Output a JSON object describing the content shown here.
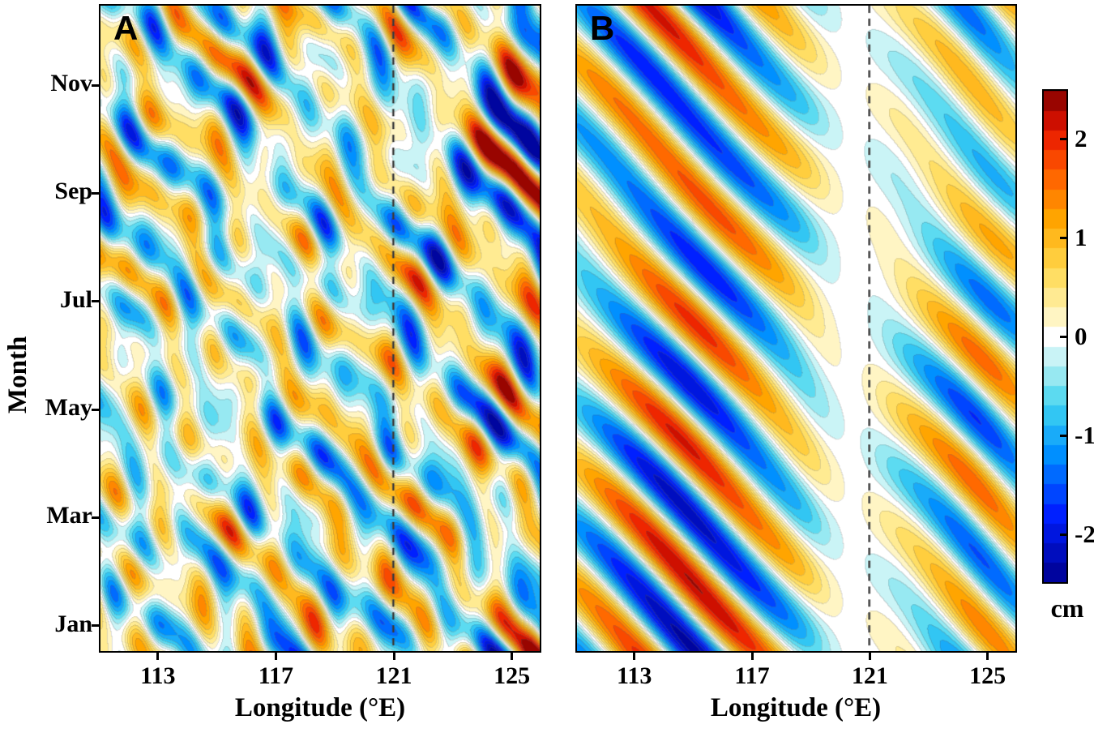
{
  "figure": {
    "background": "#ffffff",
    "ylabel": "Month",
    "xlabel": "Longitude (°E)",
    "frame_color": "#000000",
    "dashed_line_color": "#3c3c3c"
  },
  "axes": {
    "lon_min": 111,
    "lon_max": 126,
    "month_min": 0,
    "month_max": 12,
    "xticks": [
      113,
      117,
      121,
      125
    ],
    "yticks": [
      {
        "label": "Jan",
        "month": 0.5
      },
      {
        "label": "Mar",
        "month": 2.5
      },
      {
        "label": "May",
        "month": 4.5
      },
      {
        "label": "Jul",
        "month": 6.5
      },
      {
        "label": "Sep",
        "month": 8.5
      },
      {
        "label": "Nov",
        "month": 10.5
      }
    ],
    "dashed_line_lon": 121
  },
  "colorbar": {
    "min": -2.5,
    "max": 2.5,
    "ticks": [
      2,
      1,
      0,
      -1,
      -2
    ],
    "label": "cm",
    "contour_step": 0.2,
    "stops": [
      [
        -2.5,
        "#00008f"
      ],
      [
        -1.8,
        "#0020ff"
      ],
      [
        -1.2,
        "#0090ff"
      ],
      [
        -0.7,
        "#3fd4f0"
      ],
      [
        -0.35,
        "#a6ecf2"
      ],
      [
        -0.08,
        "#e6fafa"
      ],
      [
        0.0,
        "#ffffff"
      ],
      [
        0.08,
        "#fffbe2"
      ],
      [
        0.35,
        "#ffee9e"
      ],
      [
        0.7,
        "#ffd84d"
      ],
      [
        1.2,
        "#ffa500"
      ],
      [
        1.7,
        "#ff5a00"
      ],
      [
        2.1,
        "#e81500"
      ],
      [
        2.5,
        "#7f0000"
      ]
    ]
  },
  "chart_data": {
    "type": "heatmap",
    "title": "",
    "description": "Two Hovmöller (longitude vs. month) filled-contour panels of anomalies in cm. Diagonal bands tilt down toward the east, indicating signals that propagate westward as time advances. A dashed reference line marks 121°E in both panels.",
    "x": {
      "label": "Longitude (°E)",
      "range": [
        111,
        126
      ],
      "ticks": [
        113,
        117,
        121,
        125
      ]
    },
    "y": {
      "label": "Month",
      "range_months": [
        0,
        12
      ],
      "ticks": [
        "Jan",
        "Mar",
        "May",
        "Jul",
        "Sep",
        "Nov"
      ]
    },
    "value_units": "cm",
    "value_range": [
      -2.5,
      2.5
    ],
    "panels": [
      {
        "label": "A",
        "character": "Fine-scale noisy tilted bands; weak (about ±1 cm) west of 119°E, stronger features 120–123°E, strongest (up to ±2.5 cm) near the eastern edge 124–126°E.",
        "model": {
          "env_const": 0.55,
          "envelopes": [
            {
              "center": 125.9,
              "width": 2.0,
              "amp": 1.25
            },
            {
              "center": 120.8,
              "width": 2.6,
              "amp": 0.35
            },
            {
              "center": 117.4,
              "width": 3.0,
              "amp": 0.2
            }
          ],
          "gaps": [
            {
              "center": 119.8,
              "width": 0.7,
              "depth": 0.25
            }
          ],
          "time_mod": {
            "mean": 0.9,
            "amp": 0.18,
            "period": 12,
            "phase": 2.2
          },
          "waves": [
            {
              "amp": 1.0,
              "period": 2.1,
              "wavelength": 3.3,
              "phase": 0.6
            },
            {
              "amp": 0.45,
              "period": 1.45,
              "wavelength": 2.25,
              "phase": 2.9
            }
          ],
          "noise": [
            {
              "amp": 0.4,
              "kx": 0.55,
              "kt": 0.3,
              "phase": 1.1
            },
            {
              "amp": 0.36,
              "kx": 0.23,
              "kt": 0.55,
              "phase": 4.0
            },
            {
              "amp": 0.3,
              "kx": 0.8,
              "kt": 0.18,
              "phase": 2.6
            },
            {
              "amp": 0.27,
              "kx": 0.12,
              "kt": 0.7,
              "phase": 5.1
            },
            {
              "amp": 0.24,
              "kx": 0.4,
              "kt": 0.92,
              "phase": 0.3
            },
            {
              "amp": 0.2,
              "kx": 0.5,
              "kt": -0.25,
              "phase": 1.9
            }
          ],
          "noise_scale": 1.1,
          "clip": 2.45
        }
      },
      {
        "label": "B",
        "character": "Smooth broad diagonal bands reaching ±2.5 cm west of about 119°E, a quiet near-zero strip around 120–121°E, and moderate (about ±1.5 cm) bands east of 121°E.",
        "model": {
          "env_const": 0.15,
          "envelopes": [
            {
              "center": 114.8,
              "width": 4.0,
              "amp": 2.4
            },
            {
              "center": 124.8,
              "width": 2.4,
              "amp": 1.6
            }
          ],
          "gaps": [
            {
              "center": 120.4,
              "width": 1.15,
              "depth": 0.9
            }
          ],
          "time_mod": {
            "mean": 0.82,
            "amp": 0.22,
            "period": 12,
            "phase": 0.8
          },
          "waves": [
            {
              "amp": 1.0,
              "period": 2.45,
              "wavelength": 4.3,
              "phase": 0.0
            }
          ],
          "noise": [
            {
              "amp": 0.22,
              "kx": 0.21,
              "kt": 0.31,
              "phase": 2.1
            },
            {
              "amp": 0.18,
              "kx": 0.13,
              "kt": 0.52,
              "phase": 0.7
            }
          ],
          "noise_scale": 1.0,
          "clip": 2.45
        }
      }
    ]
  }
}
